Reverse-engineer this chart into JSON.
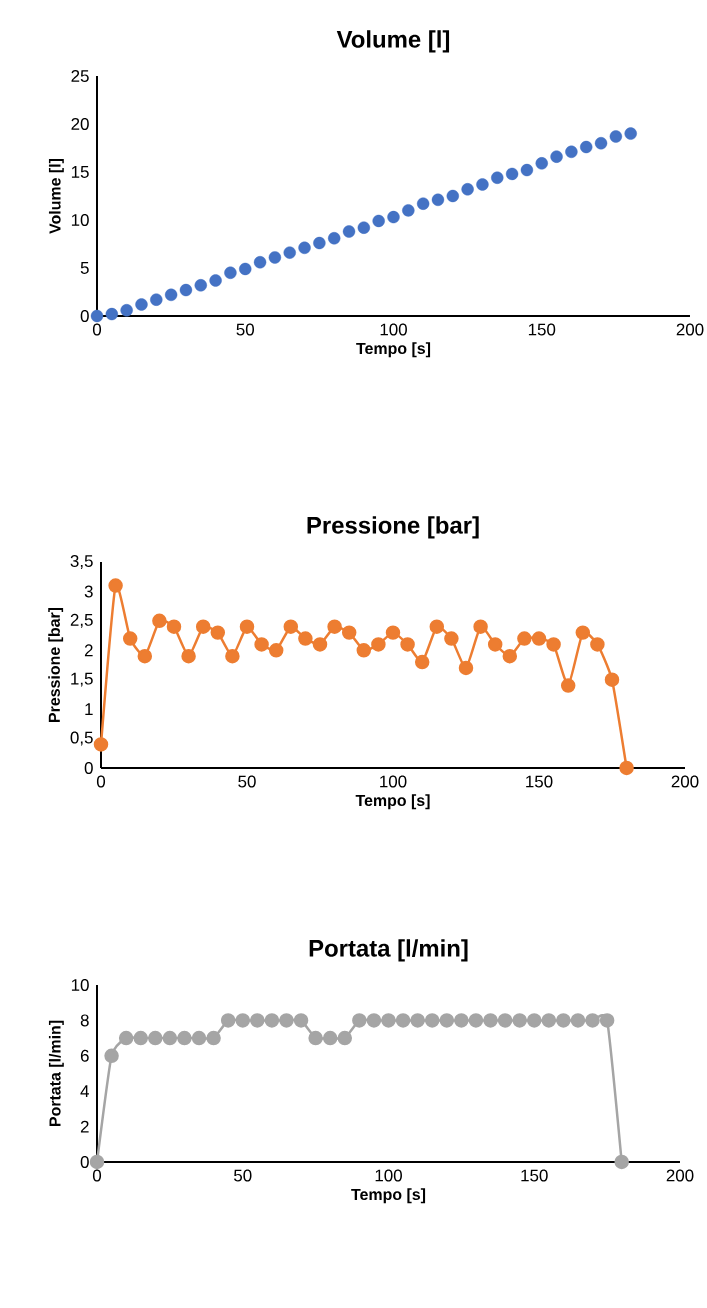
{
  "chart_data": [
    {
      "type": "scatter",
      "title": "Volume [l]",
      "xlabel": "Tempo [s]",
      "ylabel": "Volume [l]",
      "marker": "circle",
      "x": [
        0,
        5,
        10,
        15,
        20,
        25,
        30,
        35,
        40,
        45,
        50,
        55,
        60,
        65,
        70,
        75,
        80,
        85,
        90,
        95,
        100,
        105,
        110,
        115,
        120,
        125,
        130,
        135,
        140,
        145,
        150,
        155,
        160,
        165,
        170,
        175,
        180
      ],
      "series": [
        {
          "color": "#4472c4",
          "values": [
            0,
            0.2,
            0.6,
            1.2,
            1.7,
            2.2,
            2.7,
            3.2,
            3.7,
            4.5,
            4.9,
            5.6,
            6.1,
            6.6,
            7.1,
            7.6,
            8.1,
            8.8,
            9.2,
            9.9,
            10.3,
            11.0,
            11.7,
            12.1,
            12.5,
            13.2,
            13.7,
            14.4,
            14.8,
            15.2,
            15.9,
            16.6,
            17.1,
            17.6,
            18.0,
            18.7,
            19.0
          ]
        }
      ],
      "xlim": [
        0,
        200
      ],
      "xticks": [
        0,
        50,
        100,
        150,
        200
      ],
      "ylim": [
        0,
        25
      ],
      "yticks": [
        0,
        5,
        10,
        15,
        20,
        25
      ]
    },
    {
      "type": "line",
      "title": "Pressione [bar]",
      "xlabel": "Tempo [s]",
      "ylabel": "Pressione [bar]",
      "marker": "circle",
      "line_style": "solid",
      "x": [
        0,
        5,
        10,
        15,
        20,
        25,
        30,
        35,
        40,
        45,
        50,
        55,
        60,
        65,
        70,
        75,
        80,
        85,
        90,
        95,
        100,
        105,
        110,
        115,
        120,
        125,
        130,
        135,
        140,
        145,
        150,
        155,
        160,
        165,
        170,
        175,
        180
      ],
      "series": [
        {
          "color": "#ed7d31",
          "values": [
            0.4,
            3.1,
            2.2,
            1.9,
            2.5,
            2.4,
            1.9,
            2.4,
            2.3,
            1.9,
            2.4,
            2.1,
            2.0,
            2.4,
            2.2,
            2.1,
            2.4,
            2.3,
            2.0,
            2.1,
            2.3,
            2.1,
            1.8,
            2.4,
            2.2,
            1.7,
            2.4,
            2.1,
            1.9,
            2.2,
            2.2,
            2.1,
            1.4,
            2.3,
            2.1,
            1.5,
            0
          ]
        }
      ],
      "xlim": [
        0,
        200
      ],
      "xticks": [
        0,
        50,
        100,
        150,
        200
      ],
      "ylim": [
        0,
        3.5
      ],
      "yticks": [
        0,
        {
          "value": 0.5,
          "label": "0,5"
        },
        1,
        {
          "value": 1.5,
          "label": "1,5"
        },
        2,
        {
          "value": 2.5,
          "label": "2,5"
        },
        3,
        {
          "value": 3.5,
          "label": "3,5"
        }
      ]
    },
    {
      "type": "line",
      "title": "Portata [l/min]",
      "xlabel": "Tempo [s]",
      "ylabel": "Portata [l/min]",
      "marker": "circle",
      "line_style": "solid",
      "x": [
        0,
        5,
        10,
        15,
        20,
        25,
        30,
        35,
        40,
        45,
        50,
        55,
        60,
        65,
        70,
        75,
        80,
        85,
        90,
        95,
        100,
        105,
        110,
        115,
        120,
        125,
        130,
        135,
        140,
        145,
        150,
        155,
        160,
        165,
        170,
        175,
        180
      ],
      "series": [
        {
          "color": "#a5a5a5",
          "values": [
            0,
            6,
            7,
            7,
            7,
            7,
            7,
            7,
            7,
            8,
            8,
            8,
            8,
            8,
            8,
            7,
            7,
            7,
            8,
            8,
            8,
            8,
            8,
            8,
            8,
            8,
            8,
            8,
            8,
            8,
            8,
            8,
            8,
            8,
            8,
            8,
            0
          ]
        }
      ],
      "xlim": [
        0,
        200
      ],
      "xticks": [
        0,
        50,
        100,
        150,
        200
      ],
      "ylim": [
        0,
        10
      ],
      "yticks": [
        0,
        2,
        4,
        6,
        8,
        10
      ]
    }
  ]
}
